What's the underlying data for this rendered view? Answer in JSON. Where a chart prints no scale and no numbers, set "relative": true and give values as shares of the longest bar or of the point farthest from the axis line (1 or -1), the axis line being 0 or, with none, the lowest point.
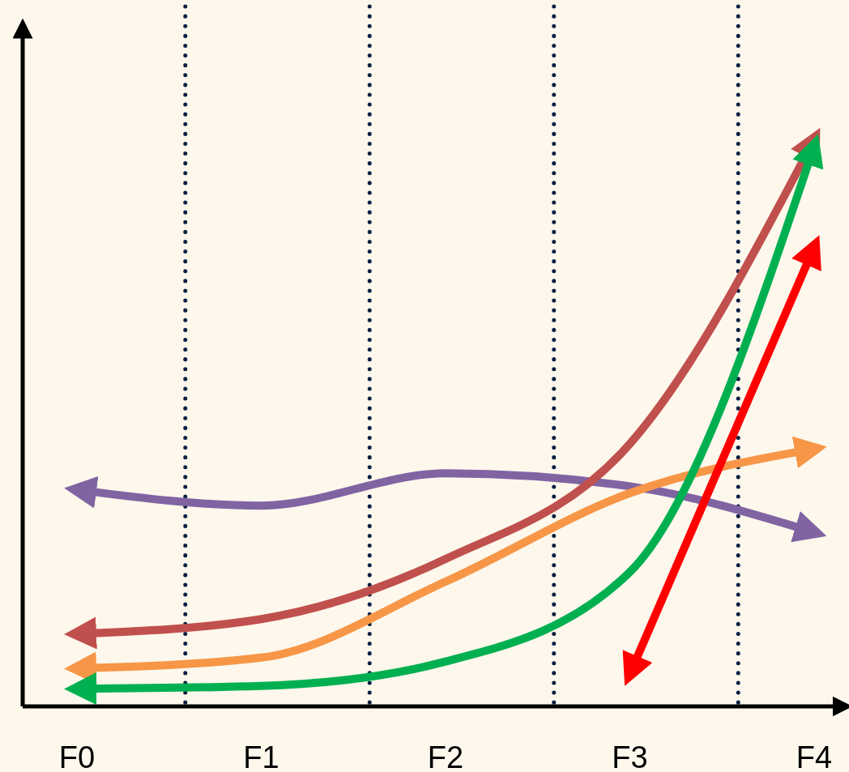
{
  "chart_data": {
    "type": "line",
    "relative": true,
    "categories": [
      "F0",
      "F1",
      "F2",
      "F3",
      "F4"
    ],
    "marker": "none",
    "line_style": "solid",
    "ref_lines": [
      {
        "axis": "x",
        "value": "F1",
        "label": null,
        "color": "#0a1f44",
        "line_style": "dotted"
      },
      {
        "axis": "x",
        "value": "F2",
        "label": null,
        "color": "#0a1f44",
        "line_style": "dotted"
      },
      {
        "axis": "x",
        "value": "F3",
        "label": null,
        "color": "#0a1f44",
        "line_style": "dotted"
      },
      {
        "axis": "x",
        "value": "F4",
        "label": null,
        "color": "#0a1f44",
        "line_style": "dotted"
      }
    ],
    "series": [
      {
        "color": "#8064a2",
        "values": [
          0.382,
          0.354,
          0.411,
          0.388,
          0.307
        ]
      },
      {
        "color": "#c0504d",
        "values": [
          0.128,
          0.154,
          0.26,
          0.463,
          1
        ]
      },
      {
        "color": "#f79646",
        "values": [
          0.067,
          0.086,
          0.22,
          0.376,
          0.454
        ]
      },
      {
        "color": "#00b050",
        "values": [
          0.031,
          0.036,
          0.079,
          0.237,
          0.988
        ]
      },
      {
        "color": "#ff0000",
        "values": [
          null,
          null,
          null,
          0.057,
          0.81
        ]
      }
    ]
  }
}
